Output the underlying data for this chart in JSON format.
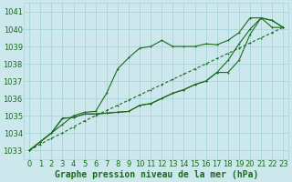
{
  "background_color": "#cce8ed",
  "grid_color": "#a8d4db",
  "line_color": "#1a6b1a",
  "title": "Graphe pression niveau de la mer (hPa)",
  "title_fontsize": 7,
  "xlim": [
    -0.5,
    23.5
  ],
  "ylim": [
    1032.5,
    1041.5
  ],
  "yticks": [
    1033,
    1034,
    1035,
    1036,
    1037,
    1038,
    1039,
    1040,
    1041
  ],
  "xticks": [
    0,
    1,
    2,
    3,
    4,
    5,
    6,
    7,
    8,
    9,
    10,
    11,
    12,
    13,
    14,
    15,
    16,
    17,
    18,
    19,
    20,
    21,
    22,
    23
  ],
  "tick_fontsize": 6,
  "series": [
    [
      1033.0,
      1033.35,
      1033.7,
      1034.0,
      1034.35,
      1034.7,
      1035.0,
      1035.3,
      1035.6,
      1035.9,
      1036.2,
      1036.5,
      1036.8,
      1037.1,
      1037.4,
      1037.7,
      1038.0,
      1038.3,
      1038.6,
      1038.9,
      1039.2,
      1039.5,
      1039.8,
      1040.1
    ],
    [
      1033.0,
      1033.5,
      1034.0,
      1034.5,
      1035.0,
      1035.2,
      1035.25,
      1036.3,
      1037.7,
      1038.35,
      1038.9,
      1039.0,
      1039.35,
      1039.0,
      1039.0,
      1039.0,
      1039.15,
      1039.1,
      1039.35,
      1039.8,
      1040.65,
      1040.65,
      1040.1,
      1040.1
    ],
    [
      1033.0,
      1033.5,
      1034.0,
      1034.85,
      1034.9,
      1035.1,
      1035.1,
      1035.15,
      1035.2,
      1035.25,
      1035.6,
      1035.7,
      1036.0,
      1036.3,
      1036.5,
      1036.8,
      1037.0,
      1037.5,
      1037.5,
      1038.2,
      1039.7,
      1040.65,
      1040.5,
      1040.1
    ],
    [
      1033.0,
      1033.5,
      1034.0,
      1034.85,
      1034.9,
      1035.1,
      1035.1,
      1035.15,
      1035.2,
      1035.25,
      1035.6,
      1035.7,
      1036.0,
      1036.3,
      1036.5,
      1036.8,
      1037.0,
      1037.5,
      1038.2,
      1039.15,
      1040.0,
      1040.65,
      1040.5,
      1040.1
    ]
  ]
}
